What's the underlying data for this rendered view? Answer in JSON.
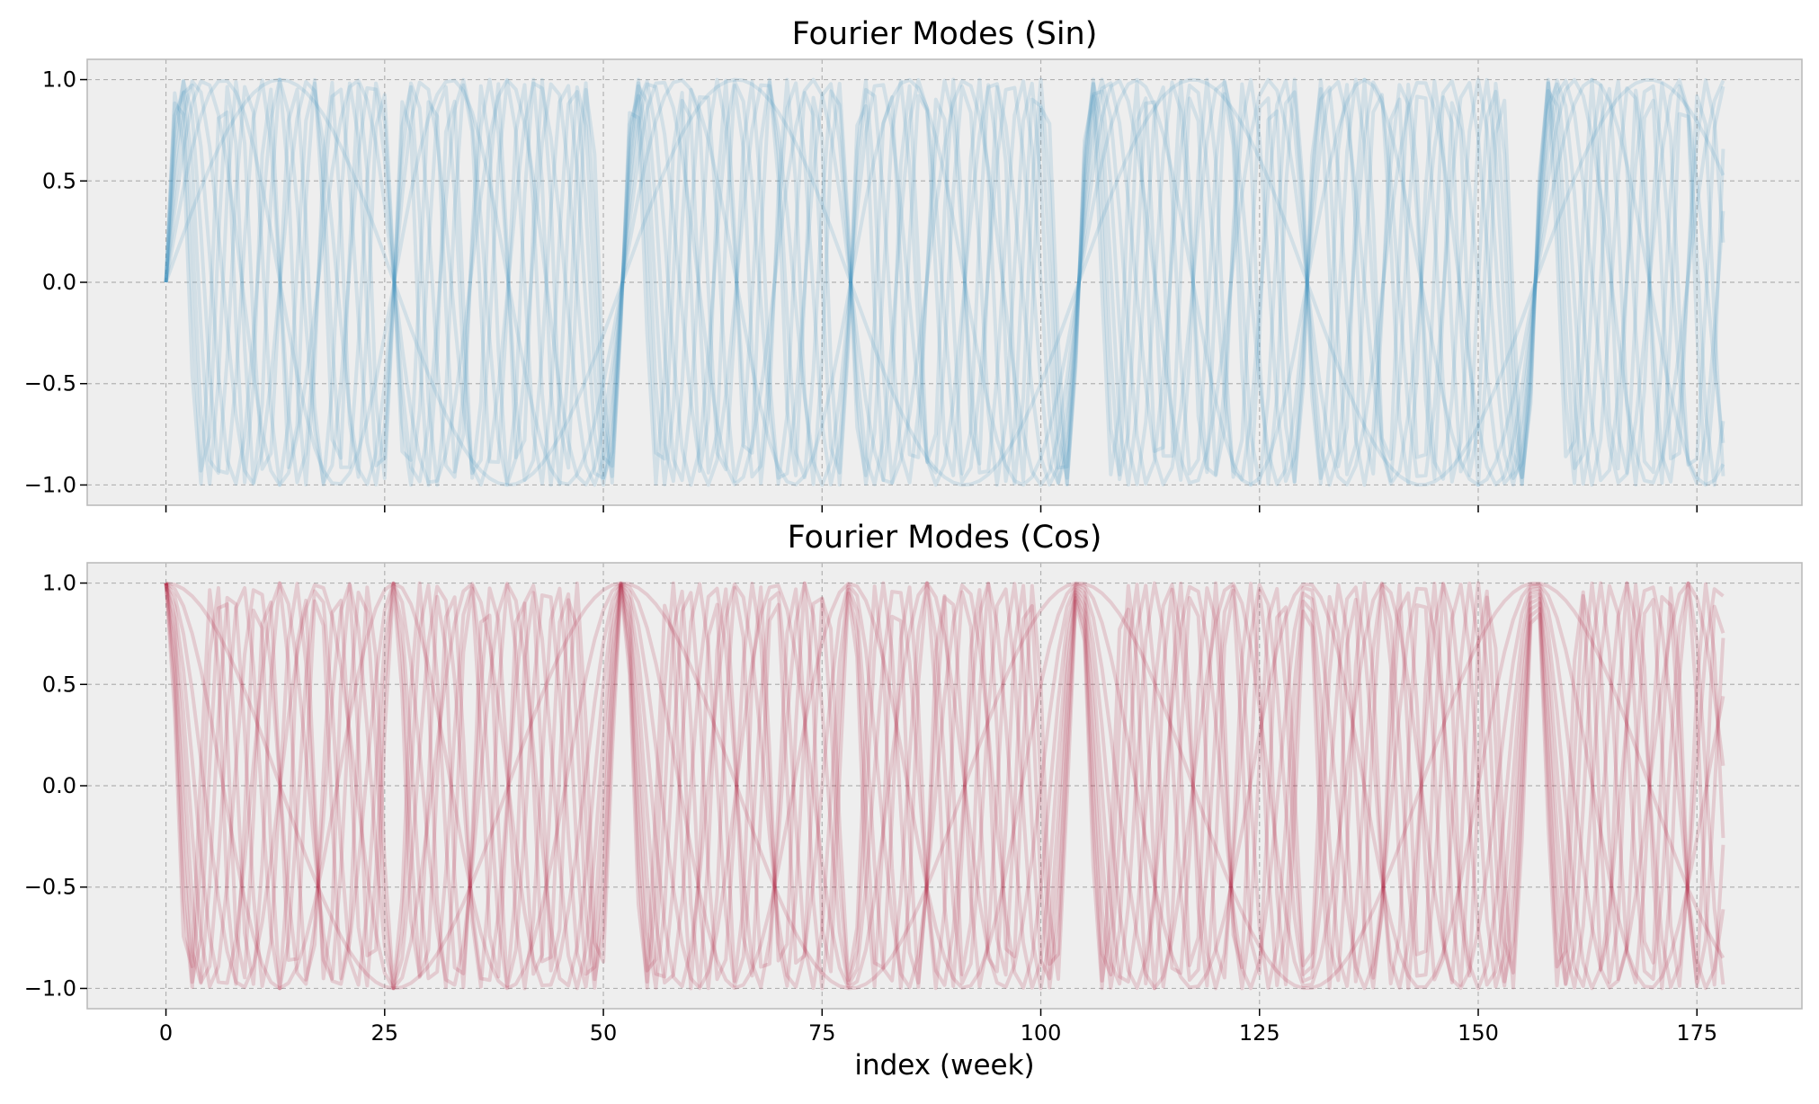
{
  "chart_data": [
    {
      "type": "line",
      "title": "Fourier Modes (Sin)",
      "function": "sin",
      "period": 52.1775,
      "modes": [
        1,
        2,
        3,
        4,
        5,
        6,
        7,
        8,
        9,
        10
      ],
      "x_range": [
        0,
        178
      ],
      "xlim": [
        -9,
        187
      ],
      "ylim": [
        -1.1,
        1.1
      ],
      "yticks": [
        -1.0,
        -0.5,
        0.0,
        0.5,
        1.0
      ],
      "ytick_labels": [
        "−1.0",
        "−0.5",
        "0.0",
        "0.5",
        "1.0"
      ],
      "xticks": [
        0,
        25,
        50,
        75,
        100,
        125,
        150,
        175
      ],
      "xtick_labels": [],
      "xlabel": "",
      "ylabel": "",
      "grid": true,
      "color": "#348ABD",
      "line_alpha": 0.15
    },
    {
      "type": "line",
      "title": "Fourier Modes (Cos)",
      "function": "cos",
      "period": 52.1775,
      "modes": [
        1,
        2,
        3,
        4,
        5,
        6,
        7,
        8,
        9,
        10
      ],
      "x_range": [
        0,
        178
      ],
      "xlim": [
        -9,
        187
      ],
      "ylim": [
        -1.1,
        1.1
      ],
      "yticks": [
        -1.0,
        -0.5,
        0.0,
        0.5,
        1.0
      ],
      "ytick_labels": [
        "−1.0",
        "−0.5",
        "0.0",
        "0.5",
        "1.0"
      ],
      "xticks": [
        0,
        25,
        50,
        75,
        100,
        125,
        150,
        175
      ],
      "xtick_labels": [
        "0",
        "25",
        "50",
        "75",
        "100",
        "125",
        "150",
        "175"
      ],
      "xlabel": "index (week)",
      "ylabel": "",
      "grid": true,
      "color": "#A60628",
      "line_alpha": 0.15
    }
  ],
  "colors": {
    "axes_background": "#EEEEEE",
    "axes_border": "#BCBCBC",
    "grid": "#B2B2B2"
  }
}
